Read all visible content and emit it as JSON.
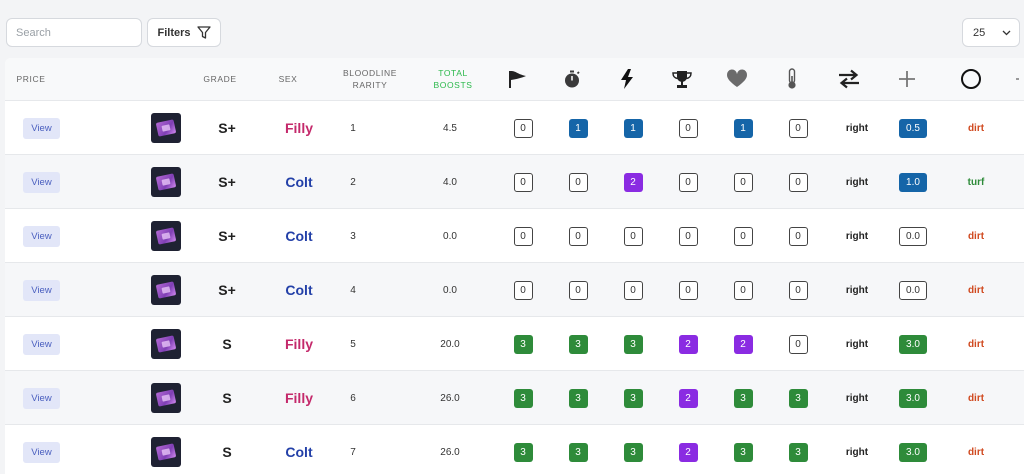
{
  "toolbar": {
    "search_placeholder": "Search",
    "filters_label": "Filters",
    "page_size": "25"
  },
  "colors": {
    "filly": "#c4296b",
    "colt": "#2340a8",
    "dirt": "#d0491f",
    "turf": "#2e8b3a",
    "badge_blue": "#1565a8",
    "badge_purple": "#8a2be2",
    "badge_green": "#2e8b3a"
  },
  "header": {
    "price": "PRICE",
    "grade": "GRADE",
    "sex": "SEX",
    "bloodline_line1": "BLOODLINE",
    "bloodline_line2": "RARITY",
    "boosts_line1": "TOTAL",
    "boosts_line2": "BOOSTS",
    "icons": [
      "flag-icon",
      "stopwatch-icon",
      "lightning-icon",
      "trophy-icon",
      "heart-icon",
      "thermometer-icon",
      "swap-arrows-icon",
      "plus-icon",
      "circle-icon"
    ]
  },
  "rows": [
    {
      "view": "View",
      "grade": "S+",
      "sex": "Filly",
      "rarity": "1",
      "boosts": "4.5",
      "stats": [
        [
          "0",
          "o"
        ],
        [
          "1",
          "b"
        ],
        [
          "1",
          "b"
        ],
        [
          "0",
          "o"
        ],
        [
          "1",
          "b"
        ],
        [
          "0",
          "o"
        ]
      ],
      "direction": "right",
      "extra": [
        "0.5",
        "b"
      ],
      "surface": "dirt"
    },
    {
      "view": "View",
      "grade": "S+",
      "sex": "Colt",
      "rarity": "2",
      "boosts": "4.0",
      "stats": [
        [
          "0",
          "o"
        ],
        [
          "0",
          "o"
        ],
        [
          "2",
          "p"
        ],
        [
          "0",
          "o"
        ],
        [
          "0",
          "o"
        ],
        [
          "0",
          "o"
        ]
      ],
      "direction": "right",
      "extra": [
        "1.0",
        "b"
      ],
      "surface": "turf"
    },
    {
      "view": "View",
      "grade": "S+",
      "sex": "Colt",
      "rarity": "3",
      "boosts": "0.0",
      "stats": [
        [
          "0",
          "o"
        ],
        [
          "0",
          "o"
        ],
        [
          "0",
          "o"
        ],
        [
          "0",
          "o"
        ],
        [
          "0",
          "o"
        ],
        [
          "0",
          "o"
        ]
      ],
      "direction": "right",
      "extra": [
        "0.0",
        "o"
      ],
      "surface": "dirt"
    },
    {
      "view": "View",
      "grade": "S+",
      "sex": "Colt",
      "rarity": "4",
      "boosts": "0.0",
      "stats": [
        [
          "0",
          "o"
        ],
        [
          "0",
          "o"
        ],
        [
          "0",
          "o"
        ],
        [
          "0",
          "o"
        ],
        [
          "0",
          "o"
        ],
        [
          "0",
          "o"
        ]
      ],
      "direction": "right",
      "extra": [
        "0.0",
        "o"
      ],
      "surface": "dirt"
    },
    {
      "view": "View",
      "grade": "S",
      "sex": "Filly",
      "rarity": "5",
      "boosts": "20.0",
      "stats": [
        [
          "3",
          "g"
        ],
        [
          "3",
          "g"
        ],
        [
          "3",
          "g"
        ],
        [
          "2",
          "p"
        ],
        [
          "2",
          "p"
        ],
        [
          "0",
          "o"
        ]
      ],
      "direction": "right",
      "extra": [
        "3.0",
        "g"
      ],
      "surface": "dirt"
    },
    {
      "view": "View",
      "grade": "S",
      "sex": "Filly",
      "rarity": "6",
      "boosts": "26.0",
      "stats": [
        [
          "3",
          "g"
        ],
        [
          "3",
          "g"
        ],
        [
          "3",
          "g"
        ],
        [
          "2",
          "p"
        ],
        [
          "3",
          "g"
        ],
        [
          "3",
          "g"
        ]
      ],
      "direction": "right",
      "extra": [
        "3.0",
        "g"
      ],
      "surface": "dirt"
    },
    {
      "view": "View",
      "grade": "S",
      "sex": "Colt",
      "rarity": "7",
      "boosts": "26.0",
      "stats": [
        [
          "3",
          "g"
        ],
        [
          "3",
          "g"
        ],
        [
          "3",
          "g"
        ],
        [
          "2",
          "p"
        ],
        [
          "3",
          "g"
        ],
        [
          "3",
          "g"
        ]
      ],
      "direction": "right",
      "extra": [
        "3.0",
        "g"
      ],
      "surface": "dirt"
    }
  ]
}
